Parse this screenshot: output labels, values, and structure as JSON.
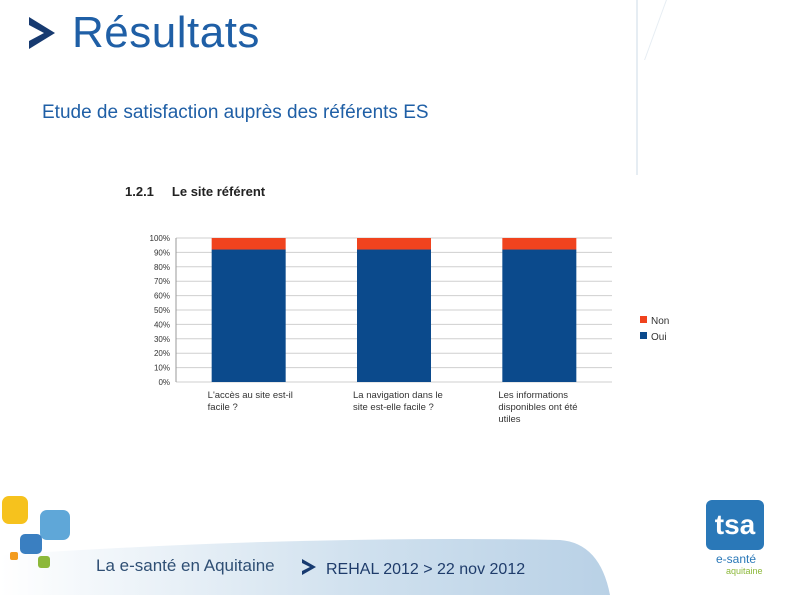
{
  "header": {
    "title": "Résultats",
    "subtitle": "Etude de satisfaction auprès des  référents ES"
  },
  "section": {
    "number": "1.2.1",
    "label": "Le site référent"
  },
  "chart_data": {
    "type": "bar",
    "stacked": true,
    "categories": [
      "L'accès au site est-il facile ?",
      "La navigation dans le site est-elle facile ?",
      "Les informations disponibles ont été utiles"
    ],
    "category_lines": [
      [
        "L'accès au site est-il",
        "facile ?"
      ],
      [
        "La navigation dans le",
        "site est-elle facile ?"
      ],
      [
        "Les informations",
        "disponibles ont été",
        "utiles"
      ]
    ],
    "series": [
      {
        "name": "Oui",
        "values": [
          92,
          92,
          92
        ],
        "color": "#0b4a8c"
      },
      {
        "name": "Non",
        "values": [
          8,
          8,
          8
        ],
        "color": "#f0431e"
      }
    ],
    "ylim": [
      0,
      100
    ],
    "yticks": [
      "0%",
      "10%",
      "20%",
      "30%",
      "40%",
      "50%",
      "60%",
      "70%",
      "80%",
      "90%",
      "100%"
    ],
    "grid": true,
    "legend": "right"
  },
  "footer": {
    "brand": "La e-santé en Aquitaine",
    "event": "REHAL 2012 > 22 nov 2012"
  },
  "logo": {
    "name": "tsa",
    "line1": "e-santé",
    "line2": "aquitaine"
  }
}
